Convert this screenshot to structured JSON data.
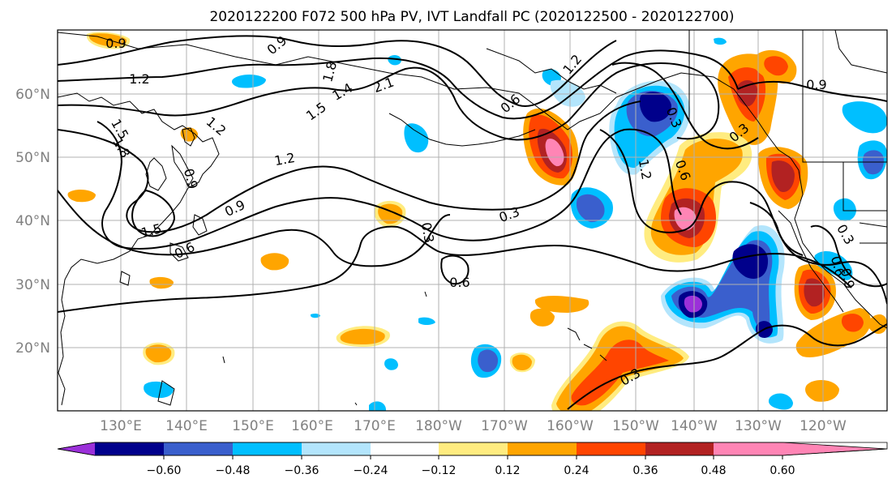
{
  "title": "2020122200 F072 500 hPa PV, IVT Landfall PC (2020122500 - 2020122700)",
  "lat_labels": [
    "60°N",
    "50°N",
    "40°N",
    "30°N",
    "20°N"
  ],
  "lon_labels": [
    "130°E",
    "140°E",
    "150°E",
    "160°E",
    "170°E",
    "180°W",
    "170°W",
    "160°W",
    "150°W",
    "140°W",
    "130°W",
    "120°W"
  ],
  "colorbar": {
    "ticks": [
      "−0.60",
      "−0.48",
      "−0.36",
      "−0.24",
      "−0.12",
      "0.12",
      "0.24",
      "0.36",
      "0.48",
      "0.60"
    ],
    "colors": [
      "#9b30d9",
      "#00008b",
      "#3a5fcd",
      "#00bfff",
      "#b3e5fc",
      "#ffffff",
      "#ffec80",
      "#ffa500",
      "#ff4500",
      "#b22222",
      "#ff85b5"
    ]
  },
  "contour_labels": [
    "0.9",
    "1.2",
    "0.9",
    "1.8",
    "1.4",
    "2.1",
    "1.5",
    "1.2",
    "1.5",
    "1.8",
    "0.9",
    "1.2",
    "1.5",
    "0.9",
    "0.6",
    "0.6",
    "1.2",
    "0.3",
    "0.3",
    "0.6",
    "0.3",
    "0.3",
    "1.2",
    "0.6",
    "0.9",
    "0.3",
    "0.9",
    "0.6",
    "0.3"
  ],
  "fill_colors": {
    "neg1": "#b3e5fc",
    "neg2": "#00bfff",
    "neg3": "#3a5fcd",
    "neg4": "#00008b",
    "pos1": "#ffec80",
    "pos2": "#ffa500",
    "pos3": "#ff4500",
    "pos4": "#b22222",
    "pos5": "#ff85b5"
  }
}
